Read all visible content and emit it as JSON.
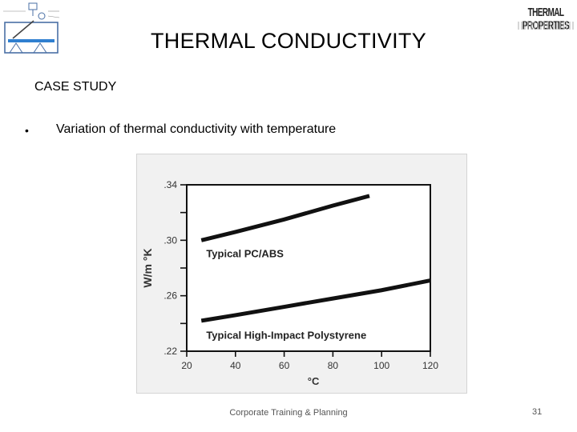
{
  "slide": {
    "title": "THERMAL CONDUCTIVITY",
    "subtitle": "CASE STUDY",
    "bullet_symbol": "•",
    "bullet_text": "Variation of thermal conductivity with temperature",
    "footer": "Corporate Training & Planning",
    "page_number": "31",
    "logo_text": "THERMAL PROPERTIES"
  },
  "chart_data": {
    "type": "line",
    "title": "",
    "xlabel": "°C",
    "ylabel": "W/m °K",
    "xlim": [
      20,
      120
    ],
    "ylim": [
      0.22,
      0.34
    ],
    "x_ticks": [
      20,
      40,
      60,
      80,
      100,
      120
    ],
    "x_tick_labels": [
      "20",
      "40",
      "60",
      "80",
      "100",
      "120"
    ],
    "y_ticks": [
      0.22,
      0.26,
      0.3,
      0.34
    ],
    "y_tick_labels": [
      ".22",
      ".26",
      ".30",
      ".34"
    ],
    "grid": false,
    "legend": "none (series labelled inline)",
    "series": [
      {
        "name": "Typical PC/ABS",
        "x": [
          26,
          40,
          60,
          80,
          95
        ],
        "y": [
          0.3,
          0.306,
          0.315,
          0.325,
          0.332
        ]
      },
      {
        "name": "Typical High-Impact Polystyrene",
        "x": [
          26,
          40,
          60,
          80,
          100,
          120
        ],
        "y": [
          0.242,
          0.246,
          0.252,
          0.258,
          0.264,
          0.271
        ]
      }
    ]
  }
}
